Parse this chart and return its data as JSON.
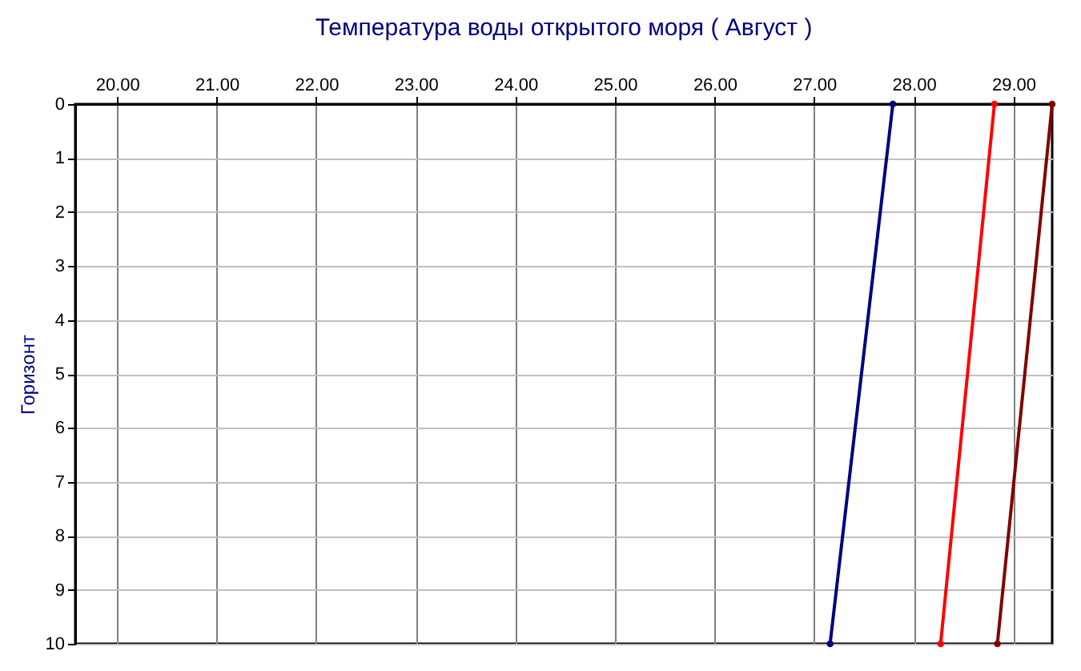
{
  "chart_data": {
    "type": "line",
    "title": "Температура воды открытого моря     ( Август )",
    "ylabel": "Горизонт",
    "xlim": [
      19.58,
      29.39
    ],
    "xticks": [
      {
        "value": 20,
        "label": "20.00"
      },
      {
        "value": 21,
        "label": "21.00"
      },
      {
        "value": 22,
        "label": "22.00"
      },
      {
        "value": 23,
        "label": "23.00"
      },
      {
        "value": 24,
        "label": "24.00"
      },
      {
        "value": 25,
        "label": "25.00"
      },
      {
        "value": 26,
        "label": "26.00"
      },
      {
        "value": 27,
        "label": "27.00"
      },
      {
        "value": 28,
        "label": "28.00"
      },
      {
        "value": 29,
        "label": "29.00"
      }
    ],
    "ylim": [
      10,
      0
    ],
    "yticks": [
      0,
      1,
      2,
      3,
      4,
      5,
      6,
      7,
      8,
      9,
      10
    ],
    "grid": true,
    "marker": "circle",
    "line_style": "solid",
    "series": [
      {
        "color": "#000080",
        "x": [
          27.79,
          27.16
        ],
        "values": [
          0,
          10
        ]
      },
      {
        "color": "#ff0000",
        "x": [
          28.81,
          28.27
        ],
        "values": [
          0,
          10
        ]
      },
      {
        "color": "#800000",
        "x": [
          29.39,
          28.84
        ],
        "values": [
          0,
          10
        ]
      }
    ]
  }
}
